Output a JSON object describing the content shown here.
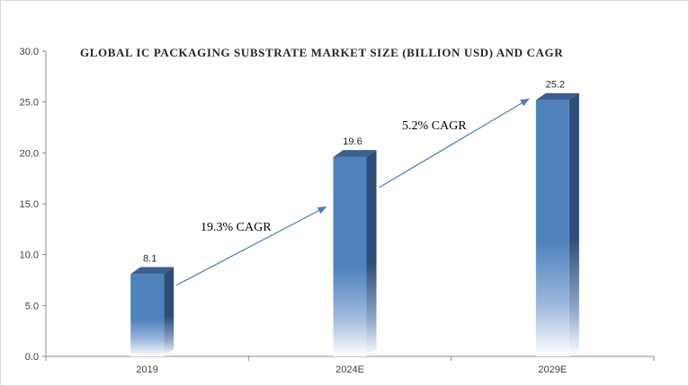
{
  "chart_data": {
    "type": "bar",
    "title": "GLOBAL IC PACKAGING  SUBSTRATE MARKET  SIZE (BILLION USD) AND CAGR",
    "categories": [
      "2019",
      "2024E",
      "2029E"
    ],
    "values": [
      8.1,
      19.6,
      25.2
    ],
    "value_labels": [
      "8.1",
      "19.6",
      "25.2"
    ],
    "ylim": [
      0,
      30
    ],
    "yticks": [
      0,
      5,
      10,
      15,
      20,
      25,
      30
    ],
    "ytick_labels": [
      "0.0",
      "5.0",
      "10.0",
      "15.0",
      "20.0",
      "25.0",
      "30.0"
    ],
    "xlabel": "",
    "ylabel": "",
    "grid": false,
    "bar_color": "#4f81bd",
    "bar_side_color": "#2e4e78",
    "bar_top_color": "#3a5f92",
    "arrow_color": "#4a7ebb",
    "annotations": [
      {
        "text": "19.3% CAGR",
        "from_category": "2019",
        "to_category": "2024E"
      },
      {
        "text": "5.2% CAGR",
        "from_category": "2024E",
        "to_category": "2029E"
      }
    ]
  }
}
